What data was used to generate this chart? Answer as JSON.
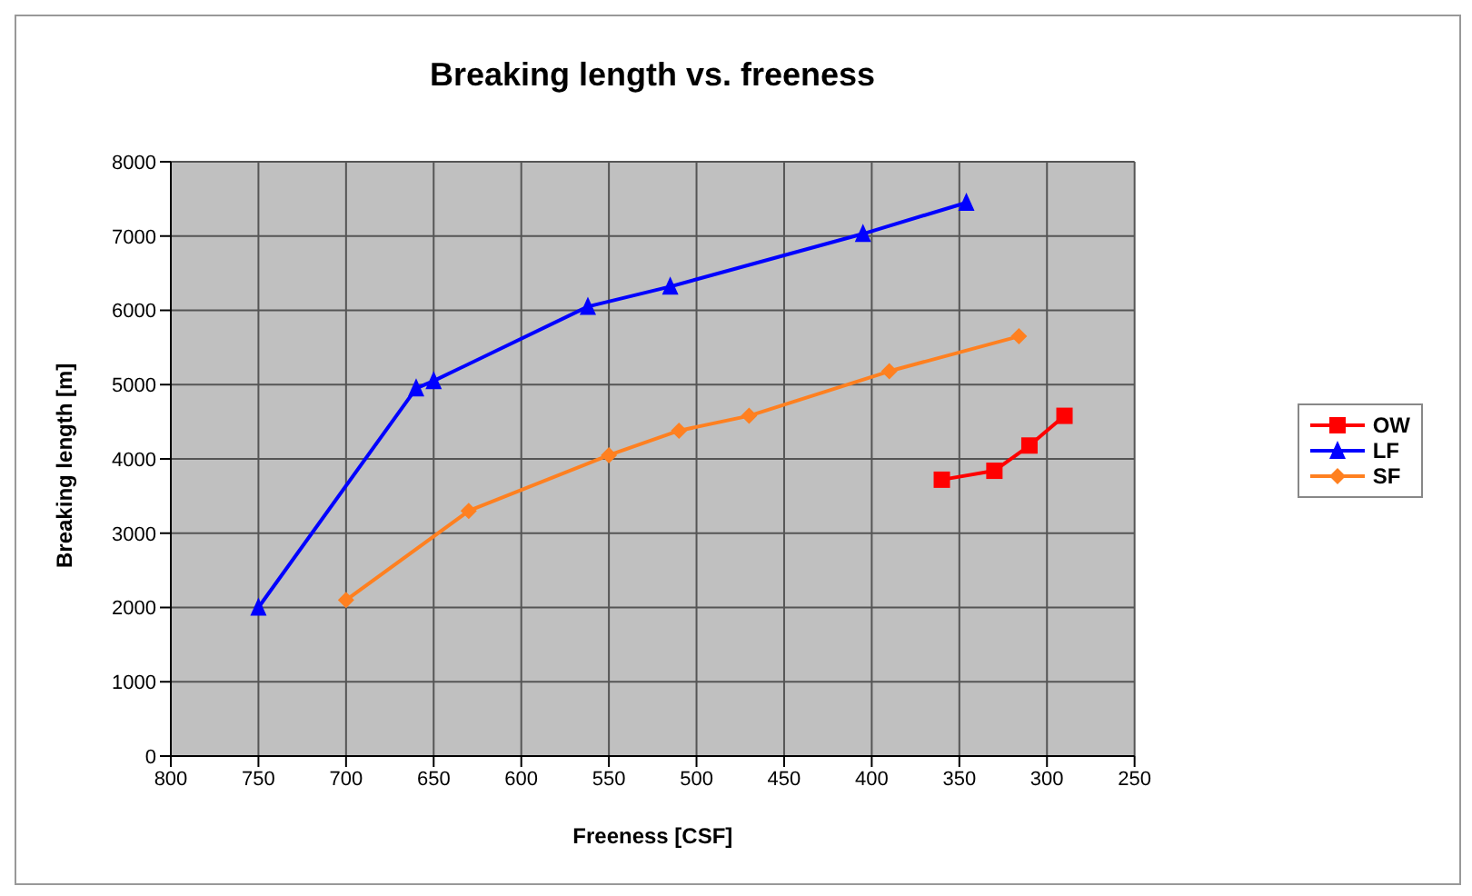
{
  "chart_data": {
    "type": "line",
    "title": "Breaking length vs. freeness",
    "xlabel": "Freeness [CSF]",
    "ylabel": "Breaking length [m]",
    "xlim": [
      800,
      250
    ],
    "xticks": [
      800,
      750,
      700,
      650,
      600,
      550,
      500,
      450,
      400,
      350,
      300,
      250
    ],
    "ylim": [
      0,
      8000
    ],
    "yticks": [
      0,
      1000,
      2000,
      3000,
      4000,
      5000,
      6000,
      7000,
      8000
    ],
    "grid": true,
    "legend": "right",
    "series": [
      {
        "name": "OW",
        "color": "#ff0000",
        "marker": "square",
        "x": [
          360,
          330,
          310,
          290
        ],
        "values": [
          3720,
          3840,
          4180,
          4580
        ]
      },
      {
        "name": "LF",
        "color": "#0000ff",
        "marker": "triangle",
        "x": [
          750,
          660,
          650,
          562,
          515,
          405,
          346
        ],
        "values": [
          2000,
          4950,
          5050,
          6050,
          6320,
          7030,
          7450
        ]
      },
      {
        "name": "SF",
        "color": "#ff8020",
        "marker": "diamond",
        "x": [
          700,
          630,
          550,
          510,
          470,
          390,
          316
        ],
        "values": [
          2100,
          3300,
          4050,
          4380,
          4580,
          5180,
          5650
        ]
      }
    ]
  }
}
